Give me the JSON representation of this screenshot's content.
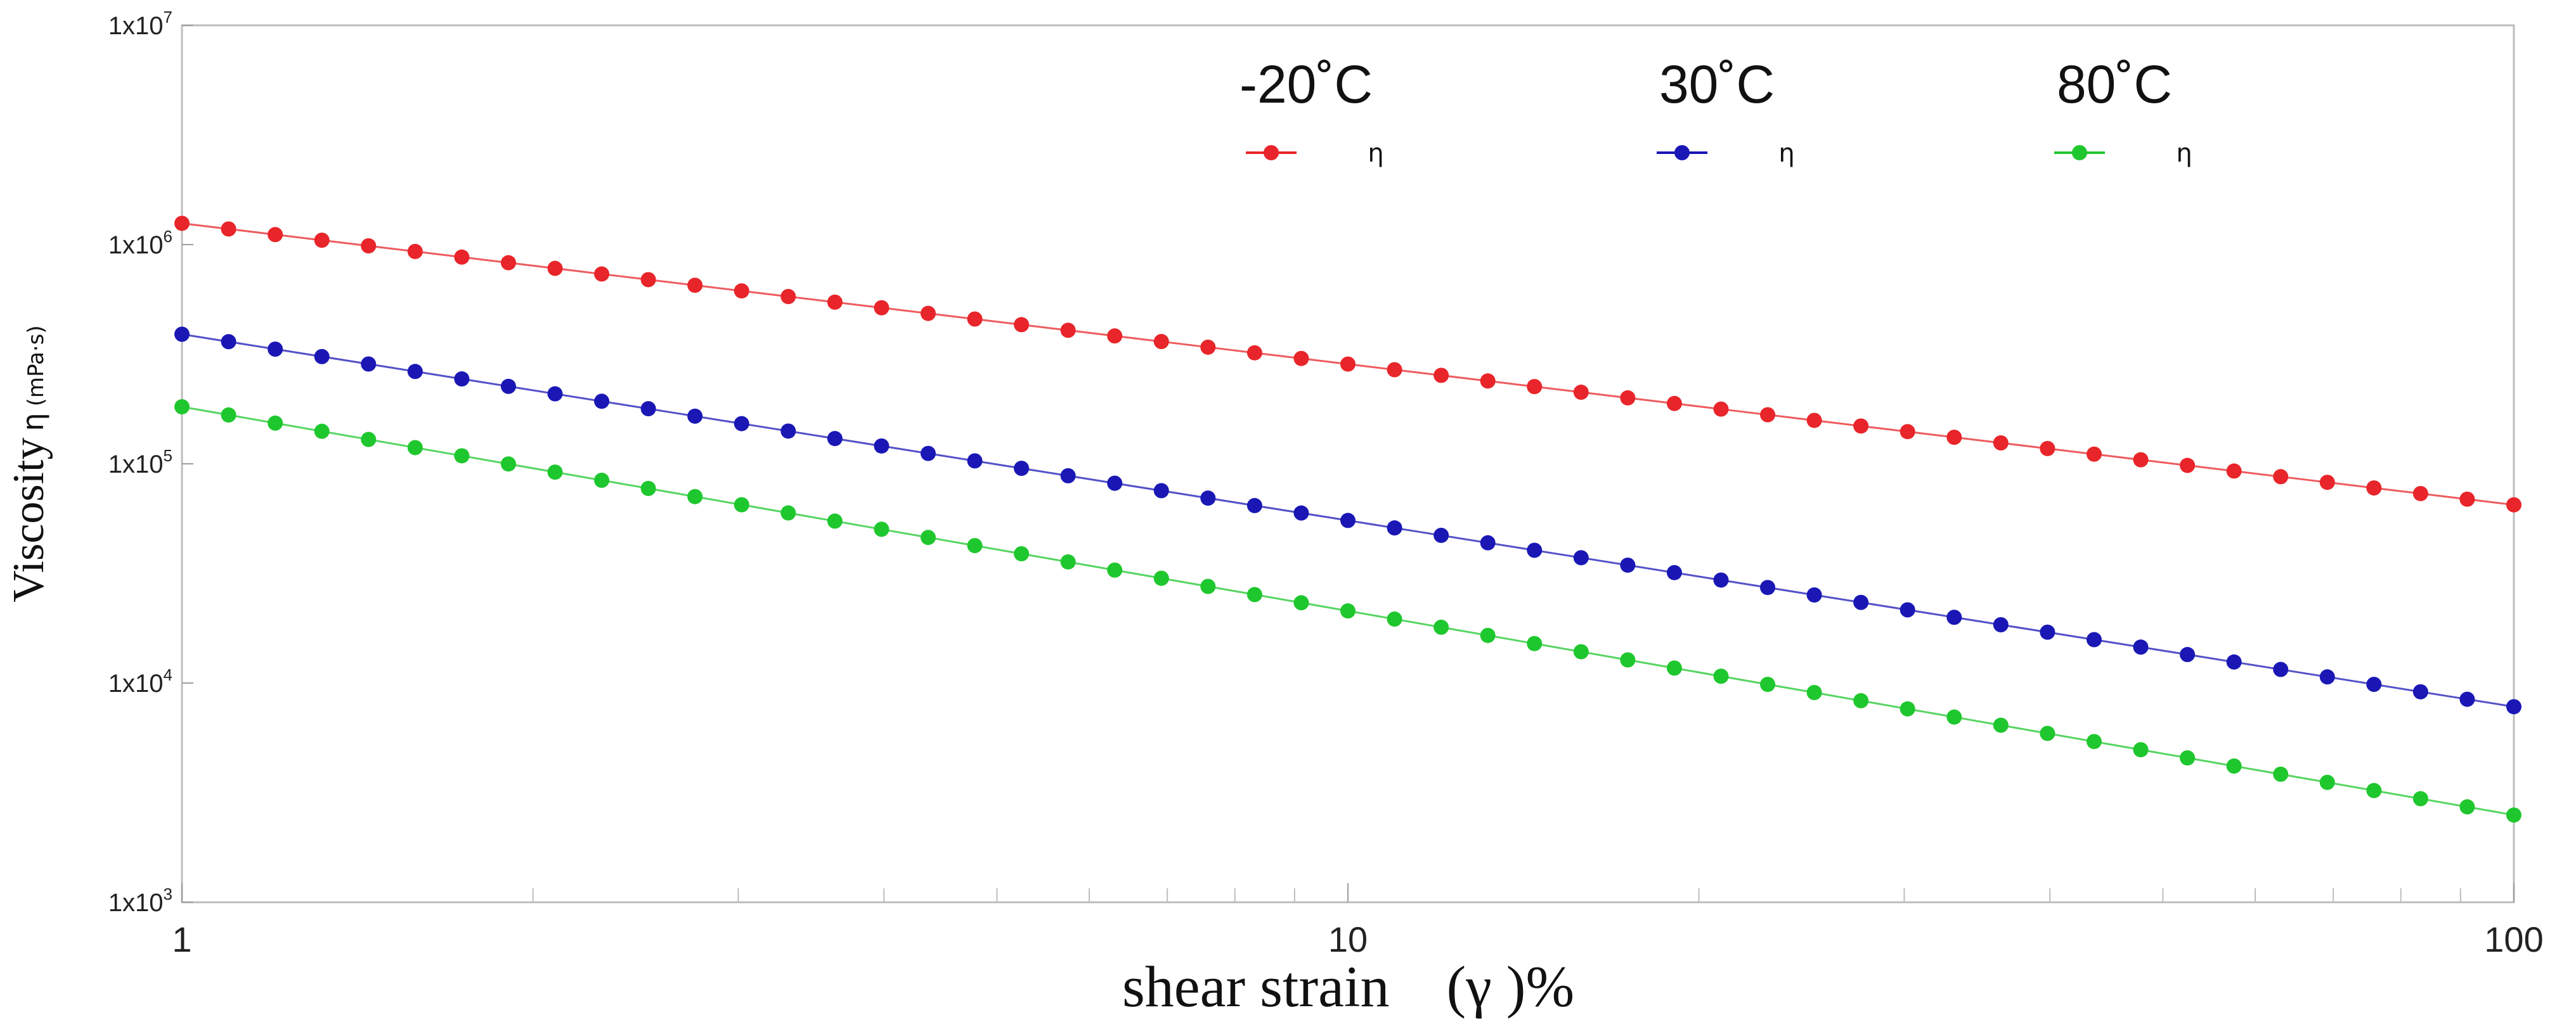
{
  "chart_data": {
    "type": "line",
    "scale": "log-log",
    "xlabel": "shear strain",
    "xlabel_symbol": "(γ )%",
    "ylabel": "Viscosity",
    "ylabel_symbol": "η",
    "ylabel_unit": "(mPa·s)",
    "xlim": [
      1,
      100
    ],
    "ylim": [
      1000,
      10000000
    ],
    "x_ticks": [
      {
        "value": 1,
        "label": "1"
      },
      {
        "value": 10,
        "label": "10"
      },
      {
        "value": 100,
        "label": "100"
      }
    ],
    "y_ticks": [
      {
        "value": 1000,
        "base": "1x10",
        "exp": "3"
      },
      {
        "value": 10000,
        "base": "1x10",
        "exp": "4"
      },
      {
        "value": 100000,
        "base": "1x10",
        "exp": "5"
      },
      {
        "value": 1000000,
        "base": "1x10",
        "exp": "6"
      },
      {
        "value": 10000000,
        "base": "1x10",
        "exp": "7"
      }
    ],
    "points_per_series": 51,
    "legend_position": "top",
    "series": [
      {
        "name": "-20˚C",
        "marker_label": "η",
        "color": "#e8252a",
        "y_at_x1": 1250000,
        "y_at_x100": 65000
      },
      {
        "name": "30˚C",
        "marker_label": "η",
        "color": "#1a17b5",
        "y_at_x1": 390000,
        "y_at_x100": 7800
      },
      {
        "name": "80˚C",
        "marker_label": "η",
        "color": "#1fc72e",
        "y_at_x1": 182000,
        "y_at_x100": 2500
      }
    ]
  }
}
